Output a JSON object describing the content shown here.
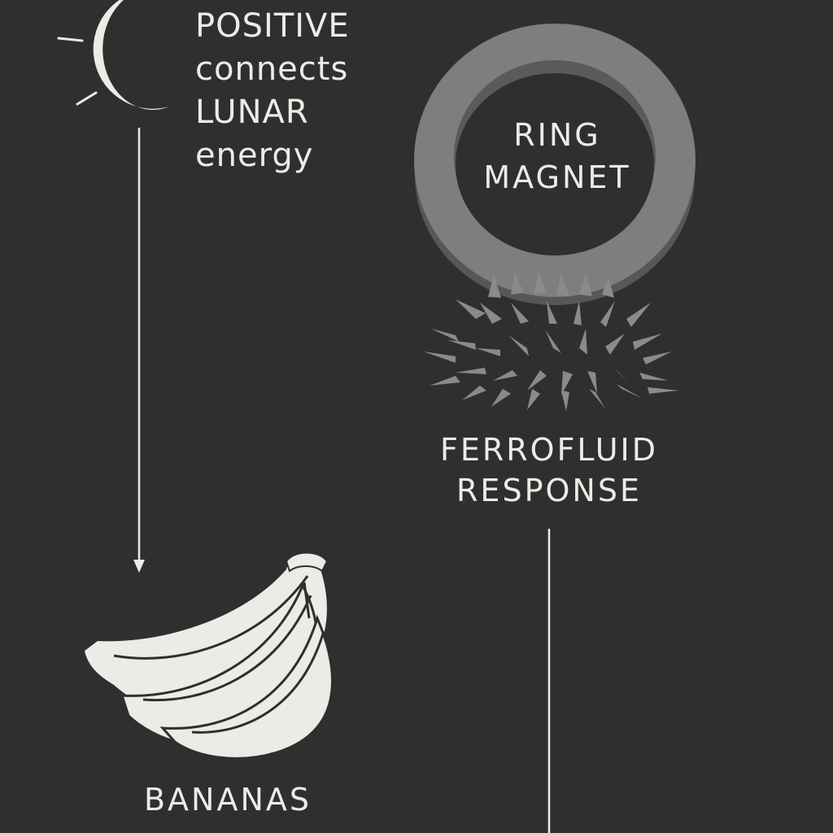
{
  "nodes": {
    "moon": {
      "icon": "crescent-moon-icon",
      "lines": [
        "POSITIVE",
        "connects",
        "LUNAR",
        "energy"
      ]
    },
    "ring_magnet": {
      "icon": "ring-magnet-icon",
      "lines": [
        "RING",
        "MAGNET"
      ]
    },
    "ferrofluid": {
      "icon": "ferrofluid-spikes-icon",
      "lines": [
        "FERROFLUID",
        "RESPONSE"
      ]
    },
    "bananas": {
      "icon": "banana-bunch-icon",
      "label": "BANANAS"
    }
  },
  "edges": [
    {
      "from": "moon",
      "to": "bananas",
      "style": "arrow"
    },
    {
      "from": "ferrofluid",
      "to": "",
      "style": "line"
    }
  ],
  "colors": {
    "background": "#2f2f2f",
    "foreground": "#ecebe6",
    "ring": "#7a7a7a",
    "ring_shadow": "#555555",
    "ferrofluid": "#8a8a8a"
  }
}
